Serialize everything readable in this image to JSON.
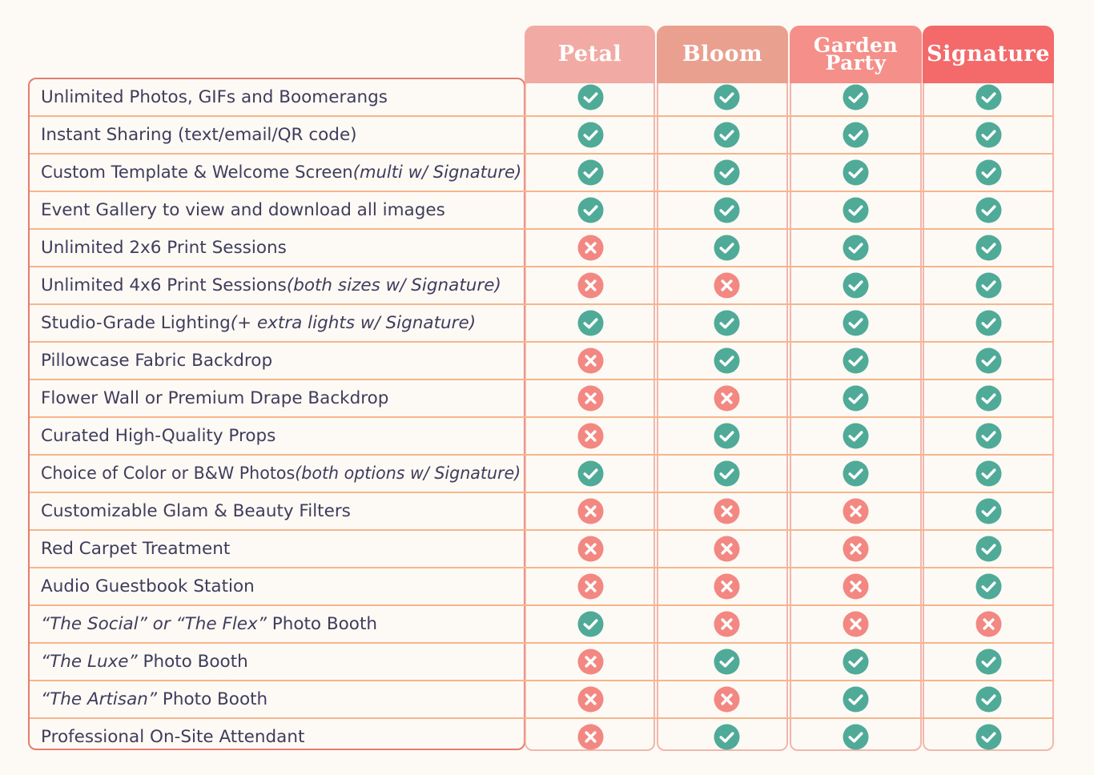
{
  "plans": [
    {
      "name": "Petal",
      "color": "#f2aaa5"
    },
    {
      "name": "Bloom",
      "color": "#e9a08e"
    },
    {
      "name": "Garden Party",
      "color": "#f58f8a"
    },
    {
      "name": "Signature",
      "color": "#f46a6b"
    }
  ],
  "icons": {
    "included": "check-circle-icon",
    "excluded": "x-circle-icon"
  },
  "colors": {
    "check": "#4faa98",
    "cross": "#f38883",
    "accent_border": "#e67c6e",
    "row_line": "#f7b58c",
    "text": "#3f3c5c"
  },
  "features": [
    {
      "label": "Unlimited Photos, GIFs and Boomerangs",
      "note": "",
      "prefix": "",
      "values": [
        true,
        true,
        true,
        true
      ]
    },
    {
      "label": "Instant Sharing (text/email/QR code)",
      "note": "",
      "prefix": "",
      "values": [
        true,
        true,
        true,
        true
      ]
    },
    {
      "label": "Custom Template & Welcome Screen",
      "note": "(multi w/ Signature)",
      "prefix": "",
      "values": [
        true,
        true,
        true,
        true
      ]
    },
    {
      "label": "Event Gallery to view and download all images",
      "note": "",
      "prefix": "",
      "values": [
        true,
        true,
        true,
        true
      ]
    },
    {
      "label": "Unlimited 2x6 Print Sessions",
      "note": "",
      "prefix": "",
      "values": [
        false,
        true,
        true,
        true
      ]
    },
    {
      "label": "Unlimited 4x6 Print Sessions",
      "note": "(both sizes w/ Signature)",
      "prefix": "",
      "values": [
        false,
        false,
        true,
        true
      ]
    },
    {
      "label": "Studio-Grade Lighting",
      "note": "(+ extra lights w/ Signature)",
      "prefix": "",
      "values": [
        true,
        true,
        true,
        true
      ]
    },
    {
      "label": "Pillowcase Fabric Backdrop",
      "note": "",
      "prefix": "",
      "values": [
        false,
        true,
        true,
        true
      ]
    },
    {
      "label": "Flower Wall or Premium Drape Backdrop",
      "note": "",
      "prefix": "",
      "values": [
        false,
        false,
        true,
        true
      ]
    },
    {
      "label": "Curated High-Quality Props",
      "note": "",
      "prefix": "",
      "values": [
        false,
        true,
        true,
        true
      ]
    },
    {
      "label": "Choice of Color or B&W Photos",
      "note": "(both options w/ Signature)",
      "prefix": "",
      "values": [
        true,
        true,
        true,
        true
      ]
    },
    {
      "label": "Customizable Glam & Beauty Filters",
      "note": "",
      "prefix": "",
      "values": [
        false,
        false,
        false,
        true
      ]
    },
    {
      "label": "Red Carpet Treatment",
      "note": "",
      "prefix": "",
      "values": [
        false,
        false,
        false,
        true
      ]
    },
    {
      "label": "Audio Guestbook Station",
      "note": "",
      "prefix": "",
      "values": [
        false,
        false,
        false,
        true
      ]
    },
    {
      "label": " Photo Booth",
      "note": "",
      "prefix": "“The Social” or “The Flex”",
      "values": [
        true,
        false,
        false,
        false
      ]
    },
    {
      "label": " Photo Booth",
      "note": "",
      "prefix": "“The Luxe”",
      "values": [
        false,
        true,
        true,
        true
      ]
    },
    {
      "label": " Photo Booth",
      "note": "",
      "prefix": "“The Artisan”",
      "values": [
        false,
        false,
        true,
        true
      ]
    },
    {
      "label": "Professional On-Site Attendant",
      "note": "",
      "prefix": "",
      "values": [
        false,
        true,
        true,
        true
      ]
    }
  ]
}
